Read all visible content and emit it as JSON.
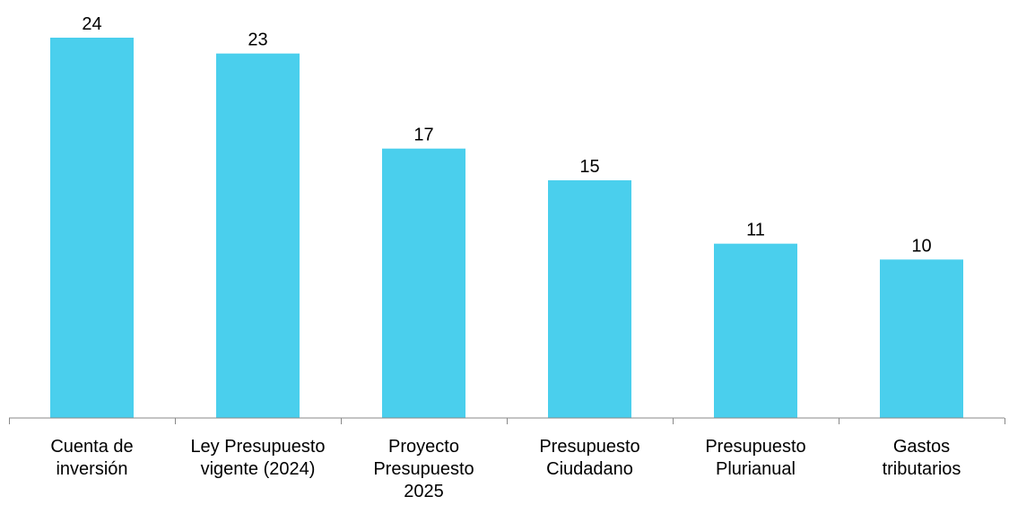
{
  "chart_data": {
    "type": "bar",
    "categories": [
      [
        "Cuenta de",
        "inversión"
      ],
      [
        "Ley Presupuesto",
        "vigente (2024)"
      ],
      [
        "Proyecto",
        "Presupuesto",
        "2025"
      ],
      [
        "Presupuesto",
        "Ciudadano"
      ],
      [
        "Presupuesto",
        "Plurianual"
      ],
      [
        "Gastos",
        "tributarios"
      ]
    ],
    "values": [
      24,
      23,
      17,
      15,
      11,
      10
    ],
    "data_labels": [
      "24",
      "23",
      "17",
      "15",
      "11",
      "10"
    ],
    "title": "",
    "xlabel": "",
    "ylabel": "",
    "ylim": [
      0,
      24
    ],
    "grid": false,
    "legend": "none",
    "colors": {
      "bar": "#4ACFED",
      "axis": "#888888",
      "text": "#000000"
    }
  }
}
